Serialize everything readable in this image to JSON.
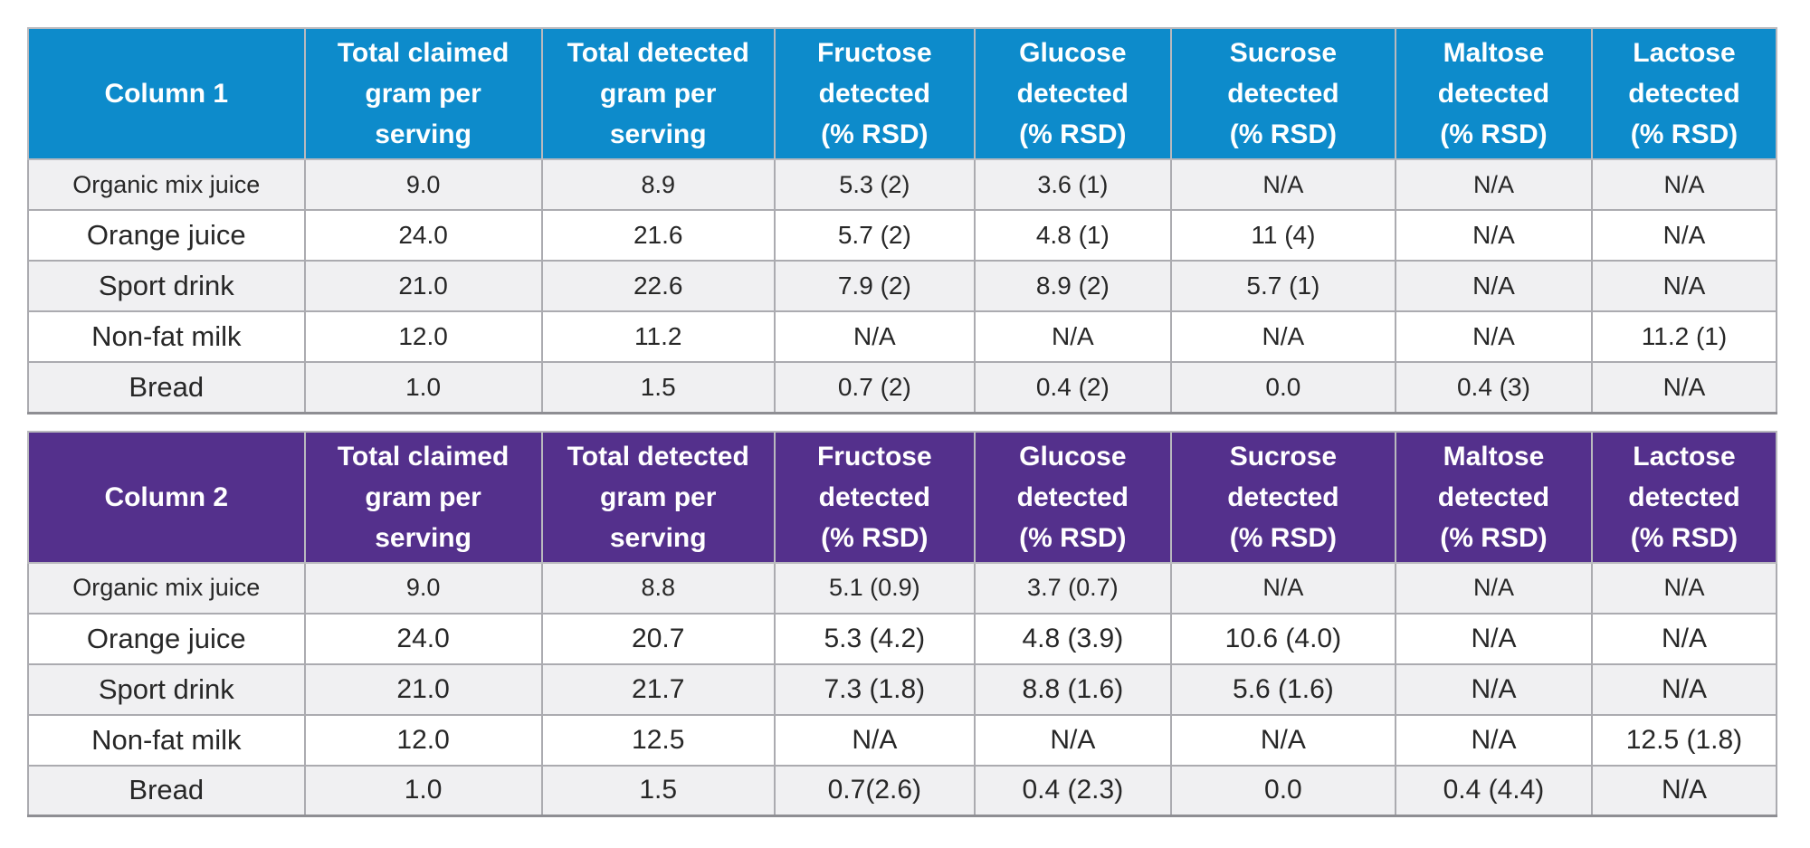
{
  "chart_data": [
    {
      "type": "table",
      "corner_label": "Column 1",
      "accent_color": "#0d8bcb",
      "col_headers": [
        "Total claimed\ngram per\nserving",
        "Total detected\ngram per\nserving",
        "Fructose\ndetected\n(% RSD)",
        "Glucose\ndetected\n(% RSD)",
        "Sucrose\ndetected\n(% RSD)",
        "Maltose\ndetected\n(% RSD)",
        "Lactose\ndetected\n(% RSD)"
      ],
      "rows": [
        {
          "label": "Organic mix juice",
          "values": [
            "9.0",
            "8.9",
            "5.3 (2)",
            "3.6 (1)",
            "N/A",
            "N/A",
            "N/A"
          ]
        },
        {
          "label": "Orange juice",
          "values": [
            "24.0",
            "21.6",
            "5.7 (2)",
            "4.8 (1)",
            "11 (4)",
            "N/A",
            "N/A"
          ]
        },
        {
          "label": "Sport drink",
          "values": [
            "21.0",
            "22.6",
            "7.9 (2)",
            "8.9 (2)",
            "5.7 (1)",
            "N/A",
            "N/A"
          ]
        },
        {
          "label": "Non-fat milk",
          "values": [
            "12.0",
            "11.2",
            "N/A",
            "N/A",
            "N/A",
            "N/A",
            "11.2 (1)"
          ]
        },
        {
          "label": "Bread",
          "values": [
            "1.0",
            "1.5",
            "0.7 (2)",
            "0.4 (2)",
            "0.0",
            "0.4 (3)",
            "N/A"
          ]
        }
      ]
    },
    {
      "type": "table",
      "corner_label": "Column 2",
      "accent_color": "#54308c",
      "col_headers": [
        "Total claimed\ngram per\nserving",
        "Total detected\ngram per\nserving",
        "Fructose\ndetected\n(% RSD)",
        "Glucose\ndetected\n(% RSD)",
        "Sucrose\ndetected\n(% RSD)",
        "Maltose\ndetected\n(% RSD)",
        "Lactose\ndetected\n(% RSD)"
      ],
      "rows": [
        {
          "label": "Organic mix juice",
          "values": [
            "9.0",
            "8.8",
            "5.1 (0.9)",
            "3.7 (0.7)",
            "N/A",
            "N/A",
            "N/A"
          ]
        },
        {
          "label": "Orange juice",
          "values": [
            "24.0",
            "20.7",
            "5.3 (4.2)",
            "4.8 (3.9)",
            "10.6 (4.0)",
            "N/A",
            "N/A"
          ]
        },
        {
          "label": "Sport drink",
          "values": [
            "21.0",
            "21.7",
            "7.3 (1.8)",
            "8.8 (1.6)",
            "5.6 (1.6)",
            "N/A",
            "N/A"
          ]
        },
        {
          "label": "Non-fat milk",
          "values": [
            "12.0",
            "12.5",
            "N/A",
            "N/A",
            "N/A",
            "N/A",
            "12.5 (1.8)"
          ]
        },
        {
          "label": "Bread",
          "values": [
            "1.0",
            "1.5",
            "0.7(2.6)",
            "0.4 (2.3)",
            "0.0",
            "0.4 (4.4)",
            "N/A"
          ]
        }
      ]
    }
  ]
}
